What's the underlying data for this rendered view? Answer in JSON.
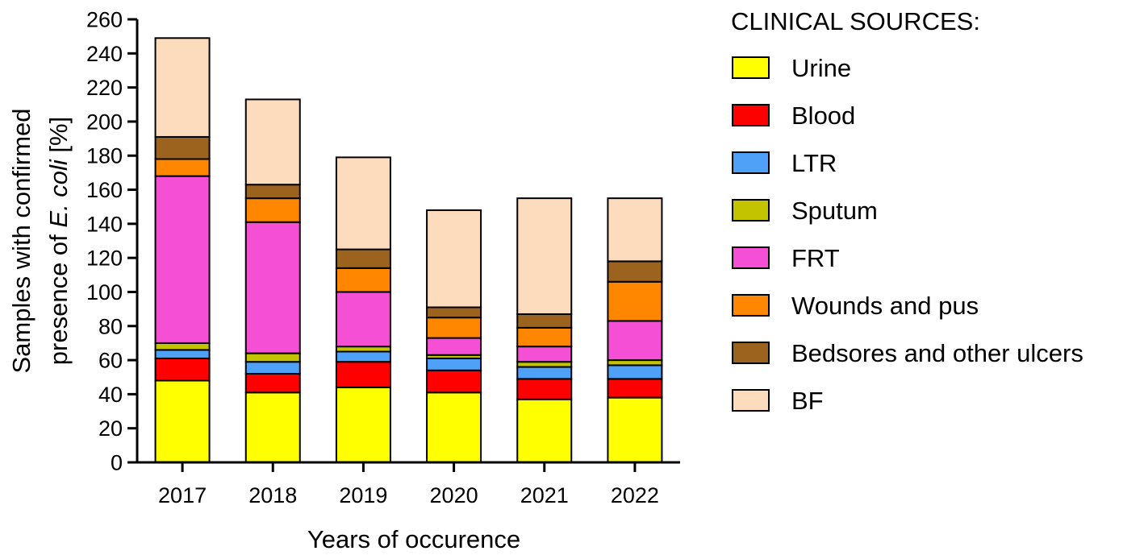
{
  "chart_data": {
    "type": "bar",
    "stacked": true,
    "categories": [
      "2017",
      "2018",
      "2019",
      "2020",
      "2021",
      "2022"
    ],
    "series": [
      {
        "name": "Urine",
        "color": "#ffff00",
        "values": [
          48,
          41,
          44,
          41,
          37,
          38
        ]
      },
      {
        "name": "Blood",
        "color": "#ff0000",
        "values": [
          13,
          11,
          15,
          13,
          12,
          11
        ]
      },
      {
        "name": "LTR",
        "color": "#4fa1f7",
        "values": [
          5,
          7,
          6,
          7,
          7,
          8
        ]
      },
      {
        "name": "Sputum",
        "color": "#c3c300",
        "values": [
          4,
          5,
          3,
          2,
          3,
          3
        ]
      },
      {
        "name": "FRT",
        "color": "#f44fd5",
        "values": [
          98,
          77,
          32,
          10,
          9,
          23
        ]
      },
      {
        "name": "Wounds and pus",
        "color": "#ff8700",
        "values": [
          10,
          14,
          14,
          12,
          11,
          23
        ]
      },
      {
        "name": "Bedsores and other ulcers",
        "color": "#9b631e",
        "values": [
          13,
          8,
          11,
          6,
          8,
          12
        ]
      },
      {
        "name": "BF",
        "color": "#fddcbd",
        "values": [
          58,
          50,
          54,
          57,
          68,
          37
        ]
      }
    ],
    "ylim": [
      0,
      260
    ],
    "yticks": [
      0,
      20,
      40,
      60,
      80,
      100,
      120,
      140,
      160,
      180,
      200,
      220,
      240,
      260
    ],
    "xlabel": "Years of occurence",
    "ylabel_line1": "Samples with confirmed",
    "ylabel_line2_prefix": "presence of ",
    "ylabel_line2_italic": "E. coli",
    "ylabel_line2_suffix": " [%]",
    "legend_title": "CLINICAL SOURCES:",
    "legend_position": "right",
    "grid": false
  }
}
